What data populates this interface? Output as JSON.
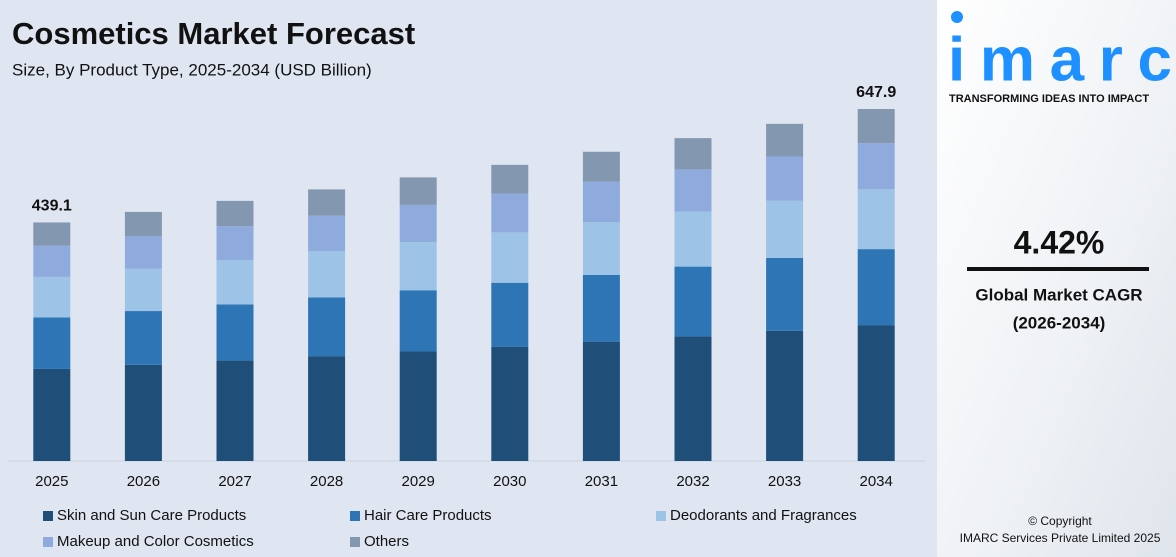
{
  "chart_data": {
    "type": "stacked_bar",
    "title": "Cosmetics Market Forecast",
    "subtitle": "Size, By Product Type, 2025-2034 (USD Billion)",
    "categories": [
      "2025",
      "2026",
      "2027",
      "2028",
      "2029",
      "2030",
      "2031",
      "2032",
      "2033",
      "2034"
    ],
    "series": [
      {
        "name": "Skin and Sun Care Products",
        "color": "#1f4e79",
        "values": [
          169.5,
          177.0,
          184.8,
          193.0,
          201.5,
          210.4,
          219.7,
          229.4,
          239.6,
          250.1
        ]
      },
      {
        "name": "Hair Care Products",
        "color": "#2e75b6",
        "values": [
          94.8,
          99.0,
          103.4,
          108.0,
          112.8,
          117.7,
          122.9,
          128.4,
          134.1,
          139.9
        ]
      },
      {
        "name": "Deodorants and Fragrances",
        "color": "#9dc3e6",
        "values": [
          74.6,
          77.9,
          81.4,
          85.0,
          88.7,
          92.7,
          96.8,
          101.0,
          105.5,
          110.1
        ]
      },
      {
        "name": "Makeup and Color Cosmetics",
        "color": "#8faadc",
        "values": [
          57.5,
          60.1,
          62.7,
          65.5,
          68.4,
          71.4,
          74.6,
          77.9,
          81.3,
          84.9
        ]
      },
      {
        "name": "Others",
        "color": "#8497b0",
        "values": [
          42.7,
          44.5,
          46.5,
          48.4,
          50.6,
          52.9,
          55.2,
          57.6,
          60.1,
          62.9
        ]
      }
    ],
    "annotations": [
      {
        "x": "2025",
        "value": 439.1
      },
      {
        "x": "2034",
        "value": 647.9
      }
    ]
  },
  "panel": {
    "logo": "imarc",
    "tagline": "TRANSFORMING IDEAS INTO IMPACT",
    "cagr": "4.42%",
    "cagr_label": "Global Market CAGR",
    "cagr_period": "(2026-2034)",
    "copyright": "© Copyright",
    "company": "IMARC Services Private Limited 2025"
  }
}
